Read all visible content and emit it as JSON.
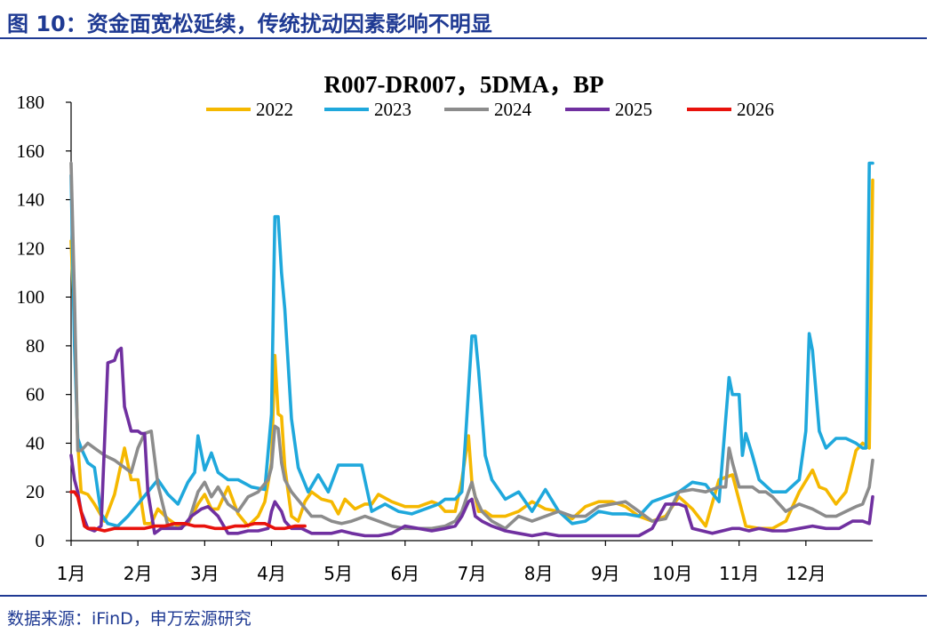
{
  "header": {
    "figure_title": "图 10：资金面宽松延续，传统扰动因素影响不明显"
  },
  "footer": {
    "source": "数据来源：iFinD，申万宏源研究"
  },
  "chart_data": {
    "type": "line",
    "title": "R007-DR007，5DMA，BP",
    "xlabel": "",
    "ylabel": "",
    "ylim": [
      0,
      180
    ],
    "yticks": [
      0,
      20,
      40,
      60,
      80,
      100,
      120,
      140,
      160,
      180
    ],
    "xlim": [
      0,
      12
    ],
    "x_tick_labels": [
      "1月",
      "2月",
      "3月",
      "4月",
      "5月",
      "6月",
      "7月",
      "8月",
      "9月",
      "10月",
      "11月",
      "12月"
    ],
    "grid": false,
    "legend_position": "top",
    "series": [
      {
        "name": "2022",
        "color": "#f5b800",
        "x": [
          0,
          0.05,
          0.1,
          0.15,
          0.25,
          0.35,
          0.5,
          0.65,
          0.8,
          0.9,
          1.0,
          1.1,
          1.2,
          1.3,
          1.45,
          1.6,
          1.75,
          1.9,
          2.0,
          2.1,
          2.2,
          2.35,
          2.5,
          2.65,
          2.8,
          2.9,
          3.0,
          3.05,
          3.1,
          3.15,
          3.2,
          3.3,
          3.4,
          3.5,
          3.6,
          3.75,
          3.9,
          4.0,
          4.1,
          4.25,
          4.4,
          4.5,
          4.6,
          4.8,
          5.0,
          5.2,
          5.4,
          5.5,
          5.6,
          5.75,
          5.85,
          5.95,
          6.0,
          6.05,
          6.1,
          6.2,
          6.3,
          6.5,
          6.7,
          6.9,
          7.1,
          7.3,
          7.5,
          7.7,
          7.9,
          8.1,
          8.3,
          8.5,
          8.7,
          8.9,
          9.1,
          9.3,
          9.5,
          9.7,
          9.9,
          10.1,
          10.3,
          10.5,
          10.7,
          10.9,
          11.1,
          11.2,
          11.3,
          11.45,
          11.6,
          11.75,
          11.85,
          11.95,
          12.0
        ],
        "values": [
          123,
          90,
          40,
          20,
          19,
          15,
          8,
          19,
          38,
          25,
          25,
          7,
          7,
          13,
          9,
          6,
          7,
          15,
          19,
          13,
          13,
          22,
          11,
          6,
          10,
          16,
          32,
          76,
          52,
          51,
          30,
          10,
          8,
          16,
          20,
          17,
          16,
          11,
          17,
          13,
          15,
          15,
          19,
          16,
          14,
          14,
          16,
          15,
          12,
          12,
          25,
          43,
          24,
          18,
          12,
          12,
          10,
          10,
          12,
          16,
          13,
          12,
          9,
          14,
          16,
          16,
          14,
          10,
          8,
          10,
          18,
          13,
          6,
          25,
          27,
          6,
          5,
          5,
          8,
          20,
          29,
          22,
          21,
          15,
          20,
          37,
          40,
          38,
          148
        ]
      },
      {
        "name": "2023",
        "color": "#1fa8dc",
        "x": [
          0,
          0.05,
          0.1,
          0.15,
          0.25,
          0.35,
          0.45,
          0.55,
          0.7,
          0.85,
          1.0,
          1.15,
          1.3,
          1.45,
          1.6,
          1.75,
          1.85,
          1.9,
          2.0,
          2.1,
          2.2,
          2.35,
          2.5,
          2.7,
          2.9,
          3.0,
          3.05,
          3.1,
          3.15,
          3.2,
          3.3,
          3.4,
          3.55,
          3.7,
          3.85,
          4.0,
          4.15,
          4.35,
          4.5,
          4.7,
          4.9,
          5.1,
          5.3,
          5.5,
          5.6,
          5.75,
          5.85,
          5.9,
          6.0,
          6.05,
          6.1,
          6.2,
          6.3,
          6.5,
          6.7,
          6.9,
          7.1,
          7.3,
          7.5,
          7.7,
          7.9,
          8.1,
          8.3,
          8.5,
          8.7,
          8.9,
          9.1,
          9.3,
          9.5,
          9.7,
          9.85,
          9.9,
          10.0,
          10.05,
          10.1,
          10.2,
          10.3,
          10.5,
          10.7,
          10.9,
          11.0,
          11.05,
          11.1,
          11.2,
          11.3,
          11.45,
          11.6,
          11.75,
          11.85,
          11.9,
          11.95,
          12.0
        ],
        "values": [
          150,
          80,
          42,
          38,
          32,
          30,
          11,
          7,
          6,
          10,
          15,
          20,
          25,
          19,
          15,
          24,
          28,
          43,
          29,
          36,
          28,
          25,
          25,
          22,
          21,
          52,
          133,
          133,
          110,
          95,
          50,
          30,
          20,
          27,
          20,
          31,
          31,
          31,
          12,
          15,
          12,
          11,
          13,
          15,
          17,
          17,
          20,
          40,
          84,
          84,
          70,
          35,
          25,
          17,
          20,
          12,
          21,
          12,
          7,
          8,
          12,
          11,
          11,
          10,
          16,
          18,
          20,
          24,
          23,
          16,
          67,
          60,
          60,
          35,
          44,
          35,
          25,
          20,
          20,
          25,
          45,
          85,
          78,
          45,
          38,
          42,
          42,
          40,
          38,
          38,
          155,
          155
        ]
      },
      {
        "name": "2024",
        "color": "#8c8c8c",
        "x": [
          0,
          0.05,
          0.1,
          0.15,
          0.25,
          0.35,
          0.5,
          0.65,
          0.8,
          0.9,
          1.0,
          1.1,
          1.2,
          1.3,
          1.45,
          1.6,
          1.75,
          1.9,
          2.0,
          2.1,
          2.2,
          2.35,
          2.5,
          2.65,
          2.8,
          2.95,
          3.0,
          3.05,
          3.1,
          3.15,
          3.2,
          3.3,
          3.45,
          3.6,
          3.75,
          3.9,
          4.05,
          4.2,
          4.4,
          4.6,
          4.8,
          5.0,
          5.2,
          5.4,
          5.6,
          5.75,
          5.85,
          5.95,
          6.0,
          6.05,
          6.15,
          6.3,
          6.5,
          6.7,
          6.9,
          7.1,
          7.3,
          7.5,
          7.7,
          7.9,
          8.1,
          8.3,
          8.5,
          8.7,
          8.9,
          9.1,
          9.3,
          9.5,
          9.7,
          9.8,
          9.85,
          9.9,
          10.0,
          10.1,
          10.2,
          10.3,
          10.4,
          10.5,
          10.7,
          10.9,
          11.1,
          11.3,
          11.45,
          11.6,
          11.75,
          11.85,
          11.95,
          12.0
        ],
        "values": [
          155,
          100,
          37,
          37,
          40,
          38,
          35,
          33,
          30,
          28,
          38,
          44,
          45,
          23,
          6,
          5,
          7,
          20,
          24,
          18,
          22,
          15,
          12,
          18,
          20,
          25,
          30,
          47,
          46,
          32,
          25,
          20,
          15,
          10,
          10,
          8,
          7,
          8,
          10,
          8,
          6,
          5,
          5,
          5,
          6,
          8,
          12,
          20,
          24,
          18,
          12,
          8,
          5,
          10,
          8,
          10,
          12,
          10,
          10,
          14,
          15,
          16,
          12,
          8,
          9,
          20,
          21,
          20,
          22,
          22,
          38,
          32,
          22,
          22,
          22,
          20,
          20,
          18,
          12,
          15,
          13,
          10,
          10,
          12,
          14,
          15,
          22,
          33
        ]
      },
      {
        "name": "2025",
        "color": "#7030a0",
        "x": [
          0,
          0.05,
          0.1,
          0.15,
          0.25,
          0.35,
          0.45,
          0.55,
          0.65,
          0.7,
          0.75,
          0.8,
          0.85,
          0.9,
          0.95,
          1.0,
          1.05,
          1.1,
          1.15,
          1.25,
          1.35,
          1.5,
          1.65,
          1.8,
          1.95,
          2.05,
          2.2,
          2.35,
          2.5,
          2.65,
          2.8,
          2.95,
          3.0,
          3.05,
          3.1,
          3.15,
          3.2,
          3.3,
          3.45,
          3.6,
          3.75,
          3.9,
          4.05,
          4.2,
          4.4,
          4.6,
          4.8,
          5.0,
          5.2,
          5.4,
          5.6,
          5.75,
          5.85,
          5.95,
          6.0,
          6.05,
          6.15,
          6.3,
          6.5,
          6.7,
          6.9,
          7.1,
          7.3,
          7.5,
          7.7,
          7.9,
          8.1,
          8.3,
          8.5,
          8.7,
          8.9,
          9.1,
          9.2,
          9.3,
          9.45,
          9.6,
          9.75,
          9.9,
          10.0,
          10.15,
          10.3,
          10.5,
          10.7,
          10.9,
          11.1,
          11.3,
          11.5,
          11.7,
          11.85,
          11.95,
          12.0
        ],
        "values": [
          35,
          25,
          20,
          12,
          5,
          4,
          6,
          73,
          74,
          78,
          79,
          55,
          50,
          45,
          45,
          45,
          44,
          44,
          20,
          3,
          5,
          5,
          5,
          10,
          13,
          14,
          10,
          3,
          3,
          4,
          4,
          5,
          12,
          16,
          14,
          12,
          8,
          5,
          5,
          3,
          3,
          3,
          4,
          3,
          2,
          2,
          3,
          6,
          5,
          4,
          5,
          6,
          10,
          16,
          17,
          10,
          8,
          6,
          4,
          3,
          2,
          3,
          2,
          2,
          2,
          2,
          2,
          2,
          2,
          5,
          15,
          15,
          14,
          5,
          4,
          3,
          4,
          5,
          5,
          4,
          5,
          4,
          4,
          5,
          6,
          5,
          5,
          8,
          8,
          7,
          18
        ]
      },
      {
        "name": "2026",
        "color": "#e8120c",
        "x": [
          0,
          0.05,
          0.1,
          0.15,
          0.2,
          0.25,
          0.35,
          0.5,
          0.65,
          0.8,
          0.95,
          1.1,
          1.25,
          1.4,
          1.55,
          1.7,
          1.85,
          2.0,
          2.15,
          2.3,
          2.45,
          2.6,
          2.75,
          2.9,
          3.05,
          3.2,
          3.35,
          3.5
        ],
        "values": [
          20,
          20,
          18,
          12,
          6,
          5,
          5,
          4,
          5,
          5,
          5,
          5,
          6,
          6,
          7,
          7,
          6,
          6,
          5,
          5,
          6,
          6,
          7,
          7,
          5,
          5,
          6,
          6
        ]
      }
    ]
  }
}
